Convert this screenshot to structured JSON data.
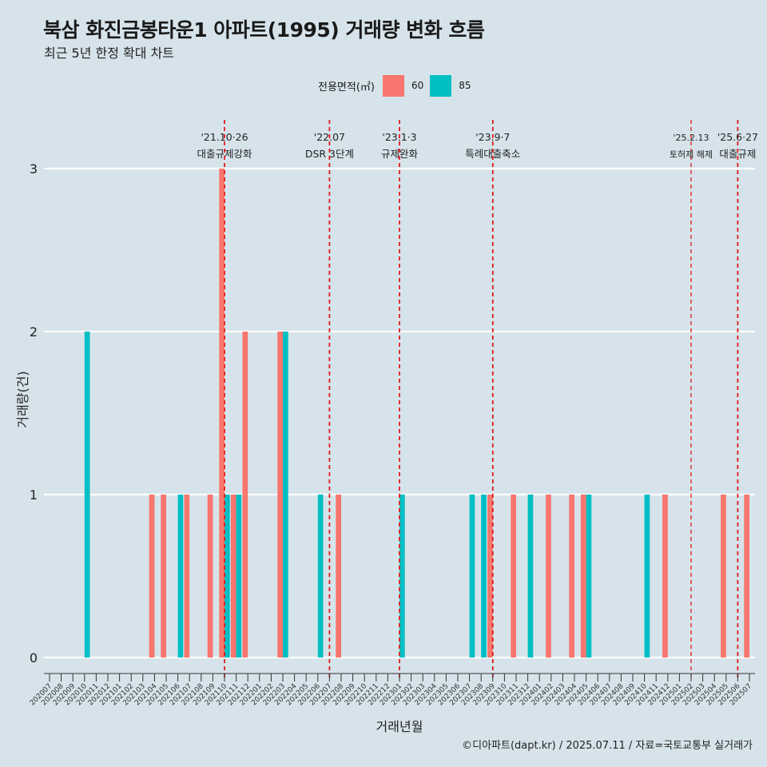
{
  "title": "북삼 화진금봉타운1 아파트(1995) 거래량 변화 흐름",
  "subtitle": "최근 5년 한정 확대 차트",
  "caption": "©디아파트(dapt.kr) / 2025.07.11 / 자료=국토교통부 실거래가",
  "legend": {
    "title": "전용면적(㎡)",
    "items": [
      {
        "label": "60",
        "color": "#f8766d"
      },
      {
        "label": "85",
        "color": "#00bfc4"
      }
    ]
  },
  "chart_data": {
    "type": "bar",
    "xlabel": "거래년월",
    "ylabel": "거래량(건)",
    "ylim": [
      0,
      3
    ],
    "yticks": [
      0,
      1,
      2,
      3
    ],
    "grid": true,
    "legend_position": "top",
    "categories": [
      "202007",
      "202008",
      "202009",
      "202010",
      "202011",
      "202012",
      "202101",
      "202102",
      "202103",
      "202104",
      "202105",
      "202106",
      "202107",
      "202108",
      "202109",
      "202110",
      "202111",
      "202112",
      "202201",
      "202202",
      "202203",
      "202204",
      "202205",
      "202206",
      "202207",
      "202208",
      "202209",
      "202210",
      "202211",
      "202212",
      "202301",
      "202302",
      "202303",
      "202304",
      "202305",
      "202306",
      "202307",
      "202308",
      "202309",
      "202310",
      "202311",
      "202312",
      "202401",
      "202402",
      "202403",
      "202404",
      "202405",
      "202406",
      "202407",
      "202408",
      "202409",
      "202410",
      "202411",
      "202412",
      "202501",
      "202502",
      "202503",
      "202504",
      "202505",
      "202506",
      "202507"
    ],
    "series": [
      {
        "name": "60",
        "color": "#f8766d",
        "values": [
          0,
          0,
          0,
          0,
          0,
          0,
          0,
          0,
          0,
          1,
          1,
          0,
          1,
          0,
          1,
          3,
          1,
          2,
          0,
          0,
          2,
          0,
          0,
          0,
          0,
          1,
          0,
          0,
          0,
          0,
          0,
          0,
          0,
          0,
          0,
          0,
          0,
          0,
          1,
          0,
          1,
          0,
          0,
          1,
          0,
          1,
          1,
          0,
          0,
          0,
          0,
          0,
          0,
          1,
          0,
          0,
          0,
          0,
          1,
          0,
          1
        ]
      },
      {
        "name": "85",
        "color": "#00bfc4",
        "values": [
          0,
          0,
          0,
          2,
          0,
          0,
          0,
          0,
          0,
          0,
          0,
          1,
          0,
          0,
          0,
          1,
          1,
          0,
          0,
          0,
          2,
          0,
          0,
          1,
          0,
          0,
          0,
          0,
          0,
          0,
          1,
          0,
          0,
          0,
          0,
          0,
          1,
          1,
          0,
          0,
          0,
          1,
          0,
          0,
          0,
          0,
          1,
          0,
          0,
          0,
          0,
          1,
          0,
          0,
          0,
          0,
          0,
          0,
          0,
          0,
          0
        ]
      }
    ],
    "events": [
      {
        "month": "202110",
        "date": "'21.10·26",
        "label": "대출규제강화"
      },
      {
        "month": "202207",
        "date": "'22.07",
        "label": "DSR 3단계"
      },
      {
        "month": "202301",
        "date": "'23.1·3",
        "label": "규제완화"
      },
      {
        "month": "202309",
        "date": "'23.9·7",
        "label": "특례대출축소"
      },
      {
        "month": "202502",
        "date": "'25.2.13",
        "label": "토허제 해제"
      },
      {
        "month": "202506",
        "date": "'25.6·27",
        "label": "대출규제"
      }
    ]
  }
}
